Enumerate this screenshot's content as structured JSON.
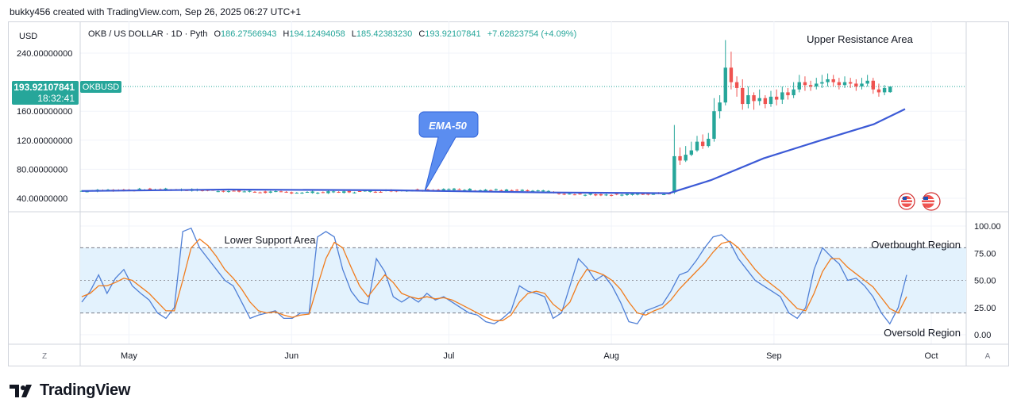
{
  "header": {
    "credit": "bukky456 created with TradingView.com, Sep 26, 2025 06:27 UTC+1"
  },
  "legend": {
    "symbol": "OKB / US DOLLAR · 1D · Pyth",
    "open_label": "O",
    "open": "186.27566943",
    "high_label": "H",
    "high": "194.12494058",
    "low_label": "L",
    "low": "185.42383230",
    "close_label": "C",
    "close": "193.92107841",
    "change": "+7.62823754 (+4.09%)"
  },
  "price_axis": {
    "currency": "USD",
    "ticks": [
      "240.00000000",
      "160.00000000",
      "120.00000000",
      "80.00000000",
      "40.00000000"
    ],
    "tick_values": [
      240,
      160,
      120,
      80,
      40
    ]
  },
  "last_price": {
    "value": "193.92107841",
    "countdown": "18:32:41",
    "ticker": "OKBUSD"
  },
  "osc_axis": {
    "ticks": [
      "100.00",
      "75.00",
      "50.00",
      "25.00",
      "0.00"
    ],
    "tick_values": [
      100,
      75,
      50,
      25,
      0
    ]
  },
  "time_axis": {
    "labels": [
      "May",
      "Jun",
      "Jul",
      "Aug",
      "Sep",
      "Oct"
    ],
    "left_button": "Z",
    "right_button": "A"
  },
  "annotations": {
    "ema": "EMA-50",
    "upper_resistance": "Upper Resistance Area",
    "lower_support": "Lower Support Area",
    "overbought": "Overbought Region",
    "oversold": "Oversold Region"
  },
  "footer": {
    "brand": "TradingView"
  },
  "colors": {
    "up": "#26a69a",
    "down": "#ef5350",
    "ema": "#3c5ad6",
    "osc_k": "#4f7fd6",
    "osc_d": "#f07c1d",
    "band_fill": "#e3f2fd",
    "ema_callout": "#5b8df0"
  },
  "chart_data": [
    {
      "type": "candlestick",
      "title": "",
      "x_range": [
        "2025-04-22",
        "2025-09-26"
      ],
      "ylim": [
        30,
        265
      ],
      "candles_summary": [
        {
          "period": "Apr 22 - Aug 12",
          "range": [
            44,
            55
          ],
          "note": "flat"
        },
        {
          "date": "2025-08-13",
          "open": 48,
          "close": 98,
          "high": 141,
          "low": 46
        },
        {
          "date": "2025-08-22",
          "high": 258,
          "low": 150
        },
        {
          "date": "2025-09-26",
          "open": 186.27566943,
          "high": 194.12494058,
          "low": 185.4238323,
          "close": 193.92107841
        }
      ],
      "series": [
        {
          "name": "EMA-50",
          "points": [
            [
              "2025-04-22",
              50
            ],
            [
              "2025-05-20",
              52
            ],
            [
              "2025-06-20",
              51
            ],
            [
              "2025-07-20",
              48
            ],
            [
              "2025-08-12",
              47
            ],
            [
              "2025-08-20",
              65
            ],
            [
              "2025-08-30",
              95
            ],
            [
              "2025-09-10",
              120
            ],
            [
              "2025-09-20",
              142
            ],
            [
              "2025-09-26",
              163
            ]
          ]
        }
      ]
    },
    {
      "type": "line",
      "title": "",
      "ylim": [
        0,
        100
      ],
      "bands": [
        20,
        80
      ],
      "series": [
        {
          "name": "%K",
          "values": [
            30,
            40,
            55,
            38,
            52,
            60,
            45,
            38,
            32,
            20,
            15,
            25,
            95,
            98,
            80,
            70,
            60,
            50,
            45,
            30,
            15,
            18,
            20,
            22,
            15,
            15,
            20,
            20,
            90,
            95,
            90,
            60,
            40,
            30,
            28,
            70,
            58,
            35,
            30,
            35,
            30,
            38,
            32,
            35,
            30,
            25,
            20,
            18,
            12,
            10,
            15,
            22,
            45,
            40,
            38,
            35,
            15,
            20,
            45,
            70,
            62,
            50,
            55,
            45,
            30,
            12,
            10,
            22,
            25,
            28,
            40,
            55,
            58,
            68,
            80,
            90,
            92,
            85,
            70,
            60,
            50,
            45,
            40,
            35,
            20,
            15,
            25,
            60,
            80,
            72,
            65,
            50,
            52,
            45,
            35,
            20,
            10,
            25,
            55
          ]
        },
        {
          "name": "%D",
          "values": [
            35,
            38,
            45,
            45,
            48,
            52,
            50,
            44,
            38,
            30,
            22,
            22,
            50,
            80,
            88,
            82,
            72,
            60,
            52,
            42,
            30,
            22,
            20,
            21,
            18,
            16,
            18,
            19,
            45,
            70,
            85,
            80,
            62,
            45,
            35,
            45,
            55,
            48,
            38,
            35,
            33,
            35,
            33,
            34,
            32,
            28,
            24,
            20,
            16,
            13,
            13,
            18,
            30,
            38,
            40,
            38,
            28,
            22,
            30,
            48,
            60,
            58,
            55,
            50,
            42,
            30,
            20,
            18,
            22,
            25,
            32,
            42,
            50,
            58,
            66,
            76,
            84,
            86,
            80,
            70,
            60,
            52,
            46,
            40,
            32,
            24,
            22,
            38,
            58,
            70,
            70,
            62,
            56,
            50,
            44,
            34,
            24,
            20,
            35
          ]
        }
      ]
    }
  ]
}
